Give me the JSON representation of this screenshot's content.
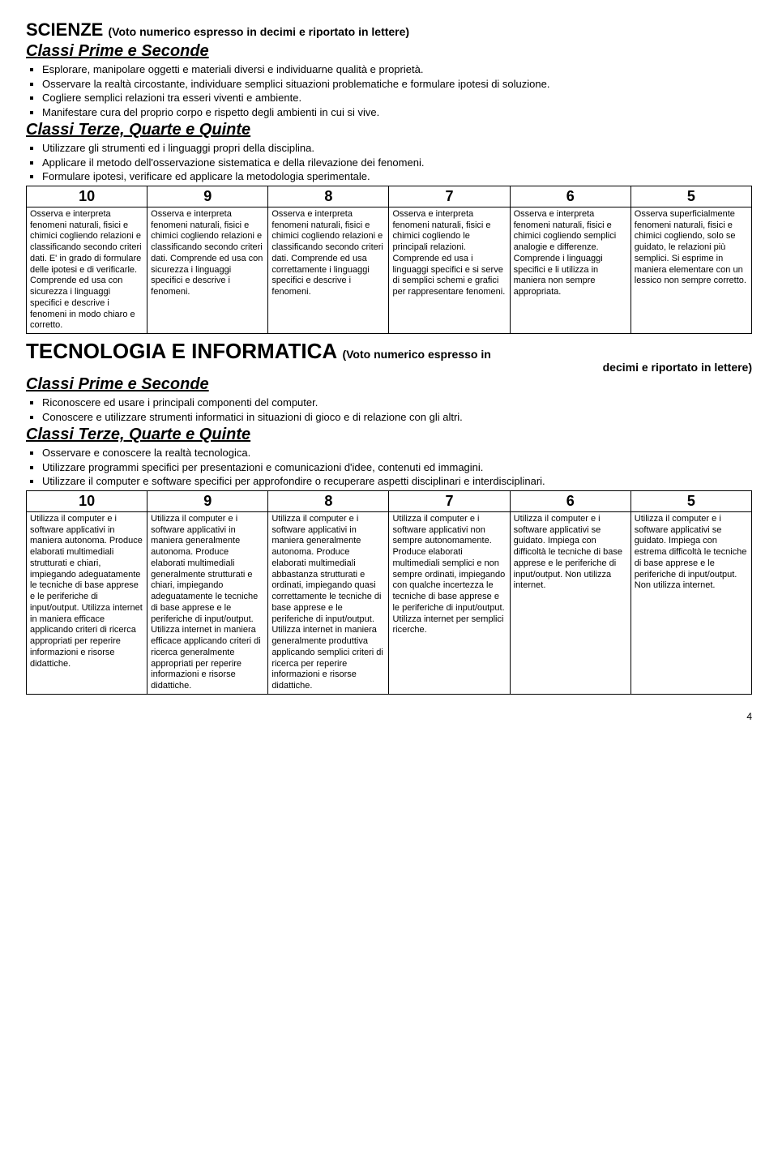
{
  "scienze": {
    "title_main": "SCIENZE",
    "title_sub": "(Voto numerico espresso in decimi e riportato in lettere)",
    "sub1": "Classi Prime e Seconde",
    "bullets1": [
      "Esplorare, manipolare oggetti e materiali diversi e individuarne qualità e proprietà.",
      "Osservare la realtà circostante, individuare semplici situazioni problematiche e formulare ipotesi di soluzione.",
      "Cogliere semplici relazioni tra esseri viventi e ambiente.",
      "Manifestare cura del proprio corpo e rispetto degli ambienti in cui si vive."
    ],
    "sub2": "Classi Terze, Quarte e Quinte",
    "bullets2": [
      "Utilizzare gli strumenti ed i linguaggi propri della disciplina.",
      "Applicare il metodo dell'osservazione sistematica e della rilevazione dei fenomeni.",
      "Formulare ipotesi, verificare ed applicare la metodologia sperimentale."
    ],
    "headers": [
      "10",
      "9",
      "8",
      "7",
      "6",
      "5"
    ],
    "cells": [
      "Osserva e interpreta fenomeni naturali, fisici e chimici cogliendo relazioni e classificando secondo criteri dati. E' in grado di formulare delle ipotesi e di verificarle. Comprende ed usa con sicurezza i linguaggi specifici e descrive i fenomeni in modo chiaro e corretto.",
      "Osserva e interpreta fenomeni naturali, fisici e chimici cogliendo relazioni e classificando secondo criteri dati. Comprende ed usa con sicurezza i linguaggi specifici e descrive i fenomeni.",
      "Osserva e interpreta fenomeni naturali, fisici e chimici cogliendo relazioni e classificando secondo criteri dati. Comprende ed usa correttamente i linguaggi specifici e descrive i fenomeni.",
      "Osserva e interpreta fenomeni naturali, fisici e chimici cogliendo le principali relazioni. Comprende ed usa i linguaggi specifici e si serve di semplici schemi e grafici per rappresentare fenomeni.",
      "Osserva e interpreta fenomeni naturali, fisici e chimici cogliendo semplici analogie e differenze. Comprende i linguaggi specifici e li utilizza in maniera non sempre appropriata.",
      "Osserva superficialmente fenomeni naturali, fisici e chimici cogliendo, solo se guidato, le relazioni più semplici. Si esprime in maniera elementare con un lessico non sempre corretto."
    ]
  },
  "tecno": {
    "title_main": "TECNOLOGIA E INFORMATICA",
    "title_sub": "(Voto numerico espresso in",
    "title_sub2": "decimi e riportato in lettere)",
    "sub1": "Classi Prime e Seconde",
    "bullets1": [
      "Riconoscere ed usare i principali componenti del computer.",
      "Conoscere e utilizzare strumenti informatici in situazioni di gioco e di relazione con gli altri."
    ],
    "sub2": "Classi Terze, Quarte e Quinte",
    "bullets2": [
      "Osservare e conoscere la realtà tecnologica.",
      "Utilizzare programmi specifici per presentazioni e comunicazioni d'idee, contenuti ed immagini.",
      "Utilizzare il computer e software specifici per approfondire o recuperare aspetti disciplinari e interdisciplinari."
    ],
    "headers": [
      "10",
      "9",
      "8",
      "7",
      "6",
      "5"
    ],
    "cells": [
      "Utilizza il computer e i software applicativi in maniera autonoma. Produce elaborati multimediali strutturati e chiari, impiegando adeguatamente le tecniche di base apprese e le periferiche di input/output. Utilizza internet in maniera efficace applicando criteri di ricerca appropriati per reperire informazioni e risorse didattiche.",
      "Utilizza il computer e i software applicativi in maniera generalmente autonoma. Produce elaborati multimediali generalmente strutturati e chiari, impiegando adeguatamente le tecniche di base apprese e le periferiche di input/output. Utilizza internet in maniera efficace applicando criteri di ricerca generalmente appropriati per reperire informazioni e risorse didattiche.",
      "Utilizza il computer e i software applicativi in maniera generalmente autonoma. Produce elaborati multimediali abbastanza strutturati e ordinati, impiegando quasi correttamente le tecniche di base apprese e le periferiche di input/output. Utilizza internet in maniera generalmente produttiva applicando semplici criteri di ricerca per reperire informazioni e risorse didattiche.",
      "Utilizza il computer e i software applicativi non sempre autonomamente. Produce elaborati multimediali semplici e non sempre ordinati, impiegando con qualche incertezza le tecniche di base apprese e le periferiche di input/output. Utilizza internet per semplici ricerche.",
      "Utilizza il computer e i software applicativi se guidato. Impiega con difficoltà le tecniche di base apprese e le periferiche di input/output. Non utilizza internet.",
      "Utilizza il computer e i software applicativi se guidato. Impiega con estrema difficoltà le tecniche di base apprese e le periferiche di input/output. Non utilizza internet."
    ]
  },
  "page_number": "4"
}
